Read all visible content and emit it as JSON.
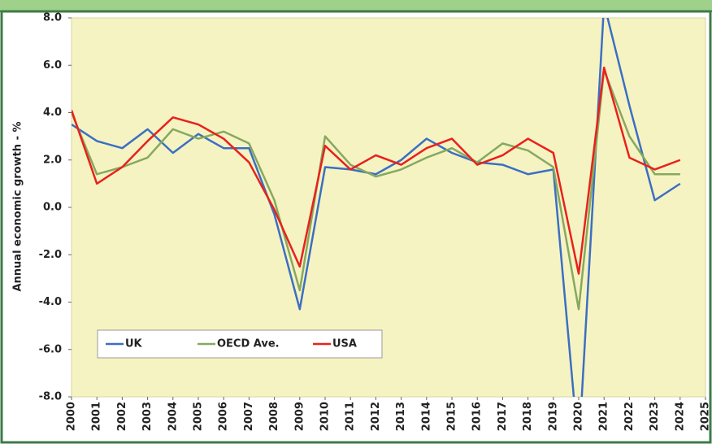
{
  "chart_data": {
    "type": "line",
    "y_label": "Annual economic growth - %",
    "x": [
      2000,
      2001,
      2002,
      2003,
      2004,
      2005,
      2006,
      2007,
      2008,
      2009,
      2010,
      2011,
      2012,
      2013,
      2014,
      2015,
      2016,
      2017,
      2018,
      2019,
      2020,
      2021,
      2022,
      2023,
      2024
    ],
    "series": [
      {
        "name": "UK",
        "color": "#3a6fc4",
        "values": [
          3.5,
          2.8,
          2.5,
          3.3,
          2.3,
          3.1,
          2.5,
          2.5,
          -0.3,
          -4.3,
          1.7,
          1.6,
          1.4,
          2.0,
          2.9,
          2.3,
          1.9,
          1.8,
          1.4,
          1.6,
          -10.3,
          8.6,
          4.3,
          0.3,
          1.0
        ]
      },
      {
        "name": "OECD Ave.",
        "color": "#86a95f",
        "values": [
          4.0,
          1.4,
          1.7,
          2.1,
          3.3,
          2.9,
          3.2,
          2.7,
          0.3,
          -3.5,
          3.0,
          1.8,
          1.3,
          1.6,
          2.1,
          2.5,
          1.9,
          2.7,
          2.4,
          1.7,
          -4.3,
          5.8,
          3.0,
          1.4,
          1.4
        ]
      },
      {
        "name": "USA",
        "color": "#e8211c",
        "values": [
          4.1,
          1.0,
          1.7,
          2.8,
          3.8,
          3.5,
          2.9,
          1.9,
          -0.1,
          -2.5,
          2.6,
          1.6,
          2.2,
          1.8,
          2.5,
          2.9,
          1.8,
          2.2,
          2.9,
          2.3,
          -2.8,
          5.9,
          2.1,
          1.6,
          2.0
        ]
      }
    ],
    "xlim": [
      2000,
      2025
    ],
    "xticks": [
      2000,
      2001,
      2002,
      2003,
      2004,
      2005,
      2006,
      2007,
      2008,
      2009,
      2010,
      2011,
      2012,
      2013,
      2014,
      2015,
      2016,
      2017,
      2018,
      2019,
      2020,
      2021,
      2022,
      2023,
      2024,
      2025
    ],
    "ylim": [
      -8,
      8
    ],
    "yticks": [
      {
        "value": -8,
        "label": "-8.0"
      },
      {
        "value": -6,
        "label": "-6.0"
      },
      {
        "value": -4,
        "label": "-4.0"
      },
      {
        "value": -2,
        "label": "-2.0"
      },
      {
        "value": 0,
        "label": "0.0"
      },
      {
        "value": 2,
        "label": "2.0"
      },
      {
        "value": 4,
        "label": "4.0"
      },
      {
        "value": 6,
        "label": "6.0"
      },
      {
        "value": 8,
        "label": "8.0"
      }
    ],
    "legend": "lower left",
    "grid": false
  }
}
